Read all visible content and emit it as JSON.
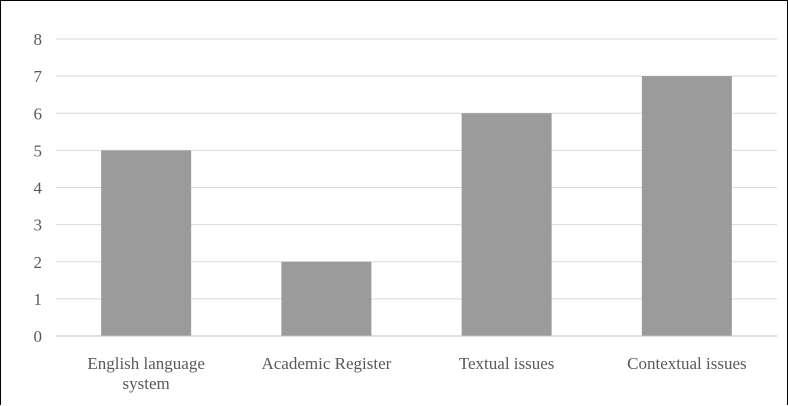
{
  "chart_data": {
    "type": "bar",
    "categories": [
      [
        "English language",
        "system"
      ],
      [
        "Academic Register"
      ],
      [
        "Textual issues"
      ],
      [
        "Contextual issues"
      ]
    ],
    "values": [
      5,
      2,
      6,
      7
    ],
    "yticks": [
      "0",
      "1",
      "2",
      "3",
      "4",
      "5",
      "6",
      "7",
      "8"
    ],
    "ylim": [
      0,
      8
    ],
    "grid": true,
    "legend": "none",
    "bar_color": "#9b9b9b",
    "grid_color": "#d9d9d9",
    "axis_color": "#bfbfbf",
    "label_color": "#595959"
  }
}
